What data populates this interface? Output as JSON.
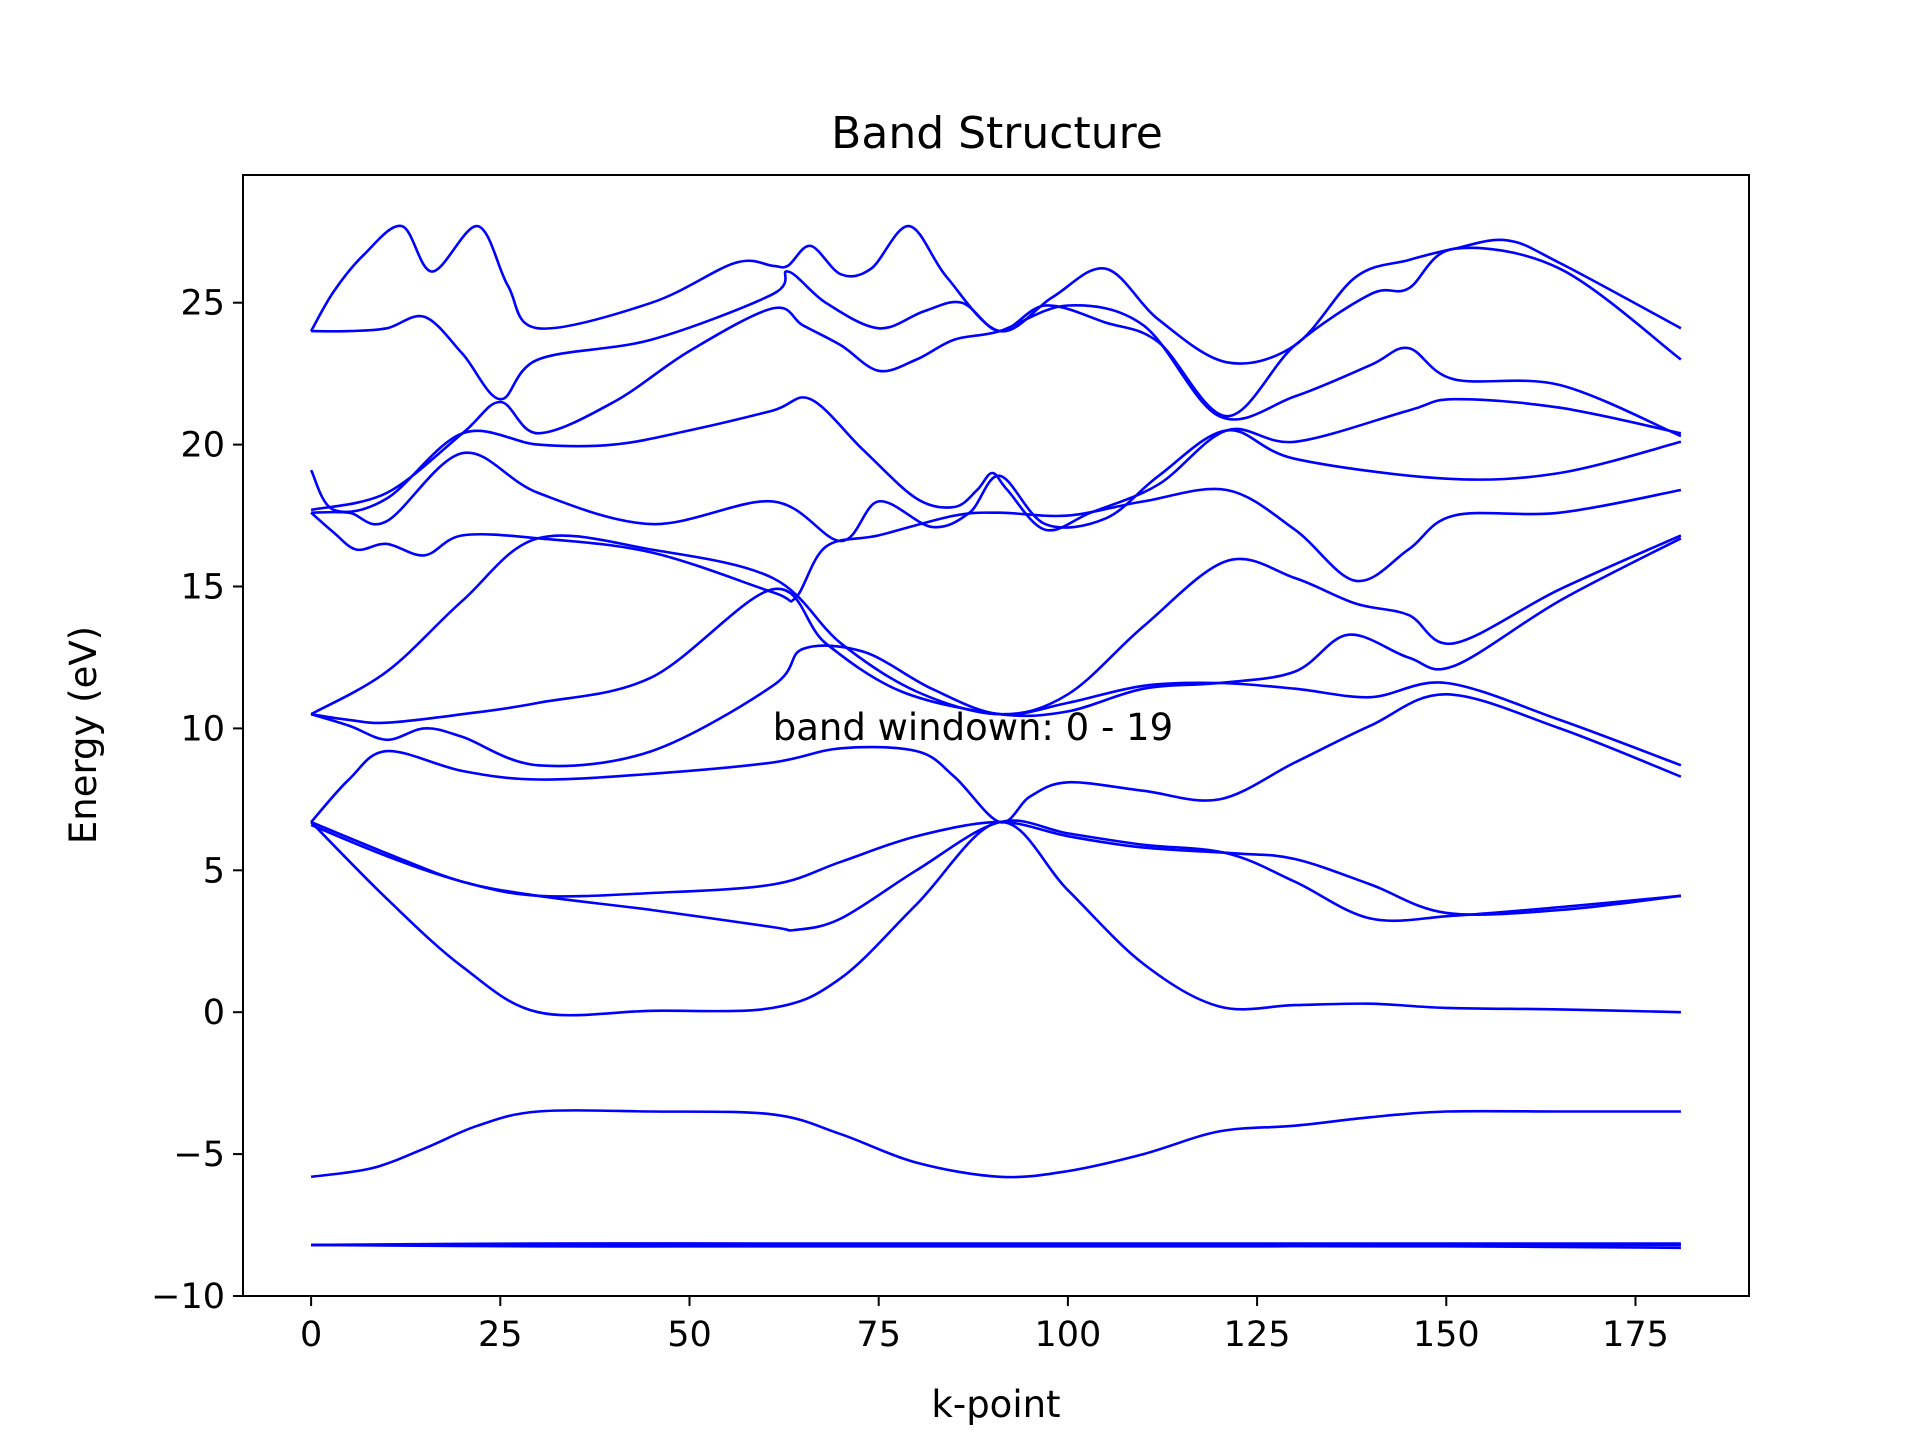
{
  "chart_data": {
    "type": "line",
    "title": "Band Structure",
    "xlabel": "k-point",
    "ylabel": "Energy (eV)",
    "xlim": [
      -9,
      190
    ],
    "ylim": [
      -10.0,
      29.5
    ],
    "xticks": [
      0,
      25,
      50,
      75,
      100,
      125,
      150,
      175
    ],
    "yticks": [
      -10,
      -5,
      0,
      5,
      10,
      15,
      20,
      25
    ],
    "xtick_labels": [
      "0",
      "25",
      "50",
      "75",
      "100",
      "125",
      "150",
      "175"
    ],
    "ytick_labels": [
      "−10",
      "−5",
      "0",
      "5",
      "10",
      "15",
      "20",
      "25"
    ],
    "grid": false,
    "line_color": "#0000ff",
    "annotation": {
      "text": "band windown: 0 - 19",
      "x": 61,
      "y": 9.6
    },
    "series": [
      {
        "x": [
          0,
          30,
          60,
          90,
          120,
          150,
          181
        ],
        "y": [
          -8.2,
          -8.15,
          -8.15,
          -8.15,
          -8.15,
          -8.15,
          -8.15
        ]
      },
      {
        "x": [
          0,
          30,
          60,
          90,
          120,
          150,
          181
        ],
        "y": [
          -8.2,
          -8.2,
          -8.2,
          -8.2,
          -8.2,
          -8.2,
          -8.2
        ]
      },
      {
        "x": [
          0,
          30,
          60,
          90,
          120,
          150,
          181
        ],
        "y": [
          -8.2,
          -8.25,
          -8.25,
          -8.25,
          -8.25,
          -8.25,
          -8.3
        ]
      },
      {
        "x": [
          0,
          8,
          15,
          22,
          30,
          45,
          61,
          70,
          80,
          91,
          100,
          110,
          120,
          130,
          140,
          150,
          165,
          181
        ],
        "y": [
          -5.8,
          -5.5,
          -4.8,
          -4.0,
          -3.5,
          -3.5,
          -3.6,
          -4.3,
          -5.3,
          -5.8,
          -5.6,
          -5.0,
          -4.2,
          -4.0,
          -3.7,
          -3.5,
          -3.5,
          -3.5
        ]
      },
      {
        "x": [
          0,
          10,
          20,
          30,
          45,
          61,
          70,
          80,
          91,
          100,
          110,
          120,
          130,
          140,
          150,
          165,
          181
        ],
        "y": [
          6.7,
          4.0,
          1.6,
          0.0,
          0.05,
          0.15,
          1.2,
          3.8,
          6.7,
          4.3,
          1.7,
          0.2,
          0.25,
          0.3,
          0.15,
          0.1,
          0.0
        ]
      },
      {
        "x": [
          0,
          10,
          20,
          30,
          45,
          61,
          64,
          70,
          80,
          91,
          100,
          110,
          121,
          130,
          140,
          151,
          165,
          181
        ],
        "y": [
          6.7,
          5.6,
          4.6,
          4.1,
          3.6,
          3.0,
          2.9,
          3.3,
          5.0,
          6.7,
          6.3,
          5.9,
          5.6,
          4.6,
          3.3,
          3.4,
          3.7,
          4.1
        ]
      },
      {
        "x": [
          0,
          10,
          20,
          30,
          45,
          61,
          70,
          80,
          91,
          100,
          110,
          122,
          130,
          140,
          150,
          165,
          181
        ],
        "y": [
          6.6,
          5.5,
          4.6,
          4.1,
          4.2,
          4.5,
          5.3,
          6.2,
          6.7,
          6.2,
          5.8,
          5.6,
          5.4,
          4.5,
          3.5,
          3.6,
          4.1
        ]
      },
      {
        "x": [
          0,
          5,
          10,
          20,
          30,
          45,
          61,
          70,
          80,
          85,
          91,
          95,
          100,
          110,
          120,
          130,
          140,
          150,
          165,
          181
        ],
        "y": [
          6.7,
          8.2,
          9.2,
          8.5,
          8.2,
          8.4,
          8.8,
          9.3,
          9.2,
          8.3,
          6.7,
          7.6,
          8.1,
          7.8,
          7.5,
          8.8,
          10.1,
          11.2,
          10.0,
          8.3
        ]
      },
      {
        "x": [
          0,
          5,
          10,
          15,
          20,
          30,
          45,
          61,
          65,
          73,
          82,
          91,
          100,
          110,
          120,
          130,
          140,
          150,
          165,
          181
        ],
        "y": [
          10.5,
          10.1,
          9.6,
          10.0,
          9.7,
          8.7,
          9.2,
          11.5,
          12.8,
          12.7,
          11.4,
          10.5,
          10.9,
          11.5,
          11.6,
          11.4,
          11.1,
          11.6,
          10.3,
          8.7
        ]
      },
      {
        "x": [
          0,
          5,
          10,
          20,
          30,
          45,
          61,
          68,
          78,
          91,
          100,
          110,
          120,
          130,
          137,
          145,
          151,
          165,
          181
        ],
        "y": [
          10.5,
          10.3,
          10.2,
          10.5,
          10.9,
          11.8,
          14.9,
          13.0,
          11.3,
          10.5,
          10.6,
          11.4,
          11.6,
          12.0,
          13.3,
          12.5,
          12.2,
          14.5,
          16.7
        ]
      },
      {
        "x": [
          0,
          10,
          20,
          30,
          45,
          61,
          70,
          80,
          91,
          100,
          110,
          121,
          130,
          138,
          145,
          151,
          165,
          181
        ],
        "y": [
          10.5,
          12.0,
          14.5,
          16.7,
          16.3,
          15.3,
          13.0,
          11.3,
          10.5,
          11.2,
          13.6,
          15.9,
          15.3,
          14.4,
          14.0,
          13.0,
          14.9,
          16.8
        ]
      },
      {
        "x": [
          0,
          3,
          6,
          10,
          15,
          20,
          30,
          45,
          61,
          64,
          68,
          75,
          85,
          91,
          100,
          110,
          121,
          130,
          138,
          145,
          151,
          165,
          181
        ],
        "y": [
          17.6,
          16.9,
          16.3,
          16.5,
          16.1,
          16.8,
          16.7,
          16.2,
          14.8,
          14.6,
          16.4,
          16.8,
          17.5,
          17.6,
          17.5,
          18.0,
          18.4,
          17.0,
          15.2,
          16.3,
          17.5,
          17.6,
          18.4
        ]
      },
      {
        "x": [
          0,
          5,
          10,
          20,
          30,
          45,
          61,
          70,
          75,
          82,
          87,
          91,
          97,
          105,
          112,
          121,
          130,
          150,
          165,
          181
        ],
        "y": [
          17.6,
          17.6,
          17.3,
          19.7,
          18.3,
          17.2,
          18.0,
          16.6,
          18.0,
          17.1,
          17.6,
          18.9,
          17.2,
          17.4,
          18.9,
          20.5,
          19.5,
          18.8,
          19.0,
          20.1
        ]
      },
      {
        "x": [
          0,
          3,
          10,
          20,
          30,
          40,
          50,
          61,
          66,
          73,
          80,
          85,
          88,
          90,
          92,
          97,
          103,
          112,
          121,
          130,
          145,
          151,
          165,
          181
        ],
        "y": [
          19.1,
          17.7,
          18.1,
          20.4,
          20.0,
          20.0,
          20.5,
          21.2,
          21.6,
          19.8,
          18.1,
          17.8,
          18.4,
          19.0,
          18.4,
          17.0,
          17.6,
          18.6,
          20.5,
          20.1,
          21.2,
          21.6,
          21.3,
          20.4
        ]
      },
      {
        "x": [
          0,
          10,
          20,
          25,
          30,
          40,
          50,
          61,
          65,
          70,
          75,
          80,
          85,
          91,
          100,
          110,
          120,
          130,
          140,
          145,
          151,
          165,
          181
        ],
        "y": [
          17.7,
          18.3,
          20.4,
          21.5,
          20.4,
          21.5,
          23.3,
          24.8,
          24.2,
          23.5,
          22.6,
          23.0,
          23.7,
          24.0,
          24.9,
          24.2,
          21.0,
          21.7,
          22.8,
          23.4,
          22.3,
          22.1,
          20.3
        ]
      },
      {
        "x": [
          0,
          5,
          10,
          15,
          20,
          25,
          30,
          45,
          61,
          63,
          68,
          75,
          81,
          86,
          91,
          97,
          105,
          112,
          121,
          130,
          140,
          145,
          151,
          165,
          181
        ],
        "y": [
          24.0,
          24.0,
          24.1,
          24.5,
          23.2,
          21.6,
          23.0,
          23.7,
          25.3,
          26.1,
          25.0,
          24.1,
          24.7,
          25.0,
          24.0,
          24.9,
          24.3,
          23.6,
          21.0,
          23.5,
          25.3,
          25.5,
          26.9,
          26.2,
          23.0
        ]
      },
      {
        "x": [
          0,
          3,
          7,
          12,
          16,
          22,
          26,
          30,
          45,
          56,
          61,
          63,
          66,
          70,
          74,
          79,
          84,
          91,
          98,
          105,
          112,
          121,
          130,
          138,
          145,
          151,
          158,
          165,
          181
        ],
        "y": [
          24.0,
          25.4,
          26.7,
          27.7,
          26.1,
          27.7,
          25.6,
          24.1,
          25.0,
          26.4,
          26.3,
          26.3,
          27.0,
          26.0,
          26.2,
          27.7,
          25.9,
          24.0,
          25.2,
          26.2,
          24.4,
          22.9,
          23.5,
          25.9,
          26.5,
          26.9,
          27.2,
          26.4,
          24.1
        ]
      }
    ]
  }
}
